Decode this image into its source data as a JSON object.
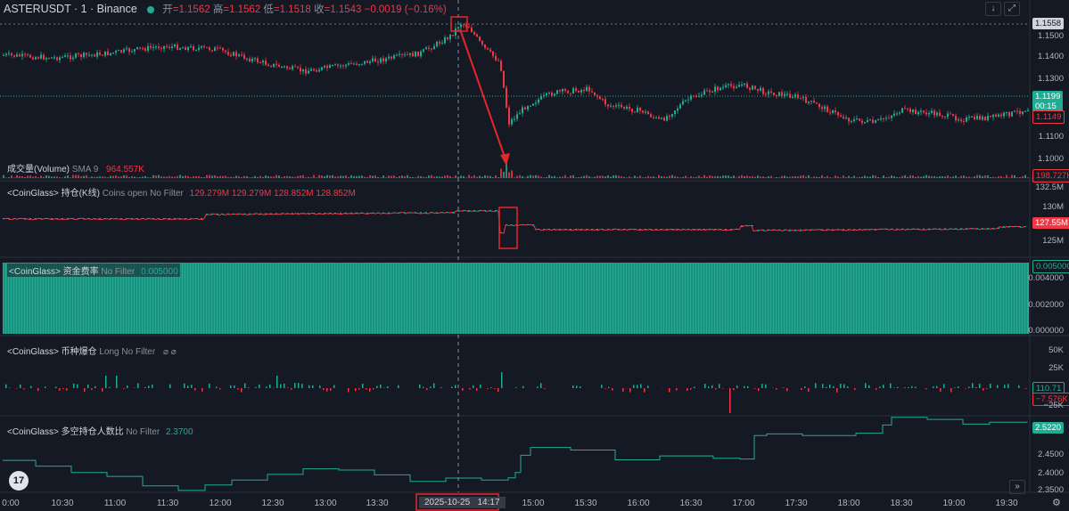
{
  "header": {
    "symbol": "ASTERUSDT · 1 · Binance",
    "open_label": "开",
    "open": "=1.1562",
    "high_label": "高",
    "high": "=1.1562",
    "low_label": "低",
    "low": "=1.1518",
    "close_label": "收",
    "close": "=1.1543",
    "change": "−0.0019 (−0.16%)"
  },
  "price_axis": {
    "ticks": [
      "1.1500",
      "1.1400",
      "1.1300",
      "1.1200",
      "1.1100",
      "1.1000"
    ],
    "top_tag": "1.1558",
    "current_tag": "1.1199",
    "countdown": "00:15",
    "low_tag": "1.1149"
  },
  "volume_pane": {
    "title": "成交量(Volume)",
    "sub": "SMA 9",
    "value": "964.557K",
    "tag": "198.727K"
  },
  "oi_pane": {
    "title": "<CoinGlass> 持仓(K线)",
    "sub": "Coins open No Filter",
    "values": "129.279M  129.279M  128.852M  128.852M",
    "ticks": [
      "132.5M",
      "130M",
      "125M"
    ],
    "tag": "127.55M"
  },
  "funding_pane": {
    "title": "<CoinGlass> 资金费率",
    "sub": "No Filter",
    "value": "0.005000",
    "ticks": [
      "0.004000",
      "0.002000",
      "0.000000"
    ],
    "tag": "0.005000"
  },
  "liq_pane": {
    "title": "<CoinGlass> 币种爆仓",
    "sub": "Long No Filter",
    "icons": "⌀ ⌀",
    "ticks": [
      "50K",
      "25K",
      "0"
    ],
    "tag_pos": "110.71",
    "tag_neg": "−7.576K",
    "neg_tick": "−25K"
  },
  "ls_pane": {
    "title": "<CoinGlass> 多空持仓人数比",
    "sub": "No Filter",
    "value": "2.3700",
    "ticks": [
      "2.4500",
      "2.4000",
      "2.3500"
    ],
    "tag": "2.5220"
  },
  "time_axis": {
    "labels": [
      "0:00",
      "10:30",
      "11:00",
      "11:30",
      "12:00",
      "12:30",
      "13:00",
      "13:30",
      "15:00",
      "15:30",
      "16:00",
      "16:30",
      "17:00",
      "17:30",
      "18:00",
      "18:30",
      "19:00",
      "19:30"
    ],
    "cursor": "2025-10-25   14:17"
  },
  "controls": {
    "down": "↓",
    "expand": "⤢",
    "close": "×",
    "forward": "»",
    "settings": "⚙"
  },
  "colors": {
    "bg": "#151924",
    "up": "#22ab94",
    "down": "#f23645",
    "grid": "#2a2e39",
    "highlight": "#e5262b"
  }
}
